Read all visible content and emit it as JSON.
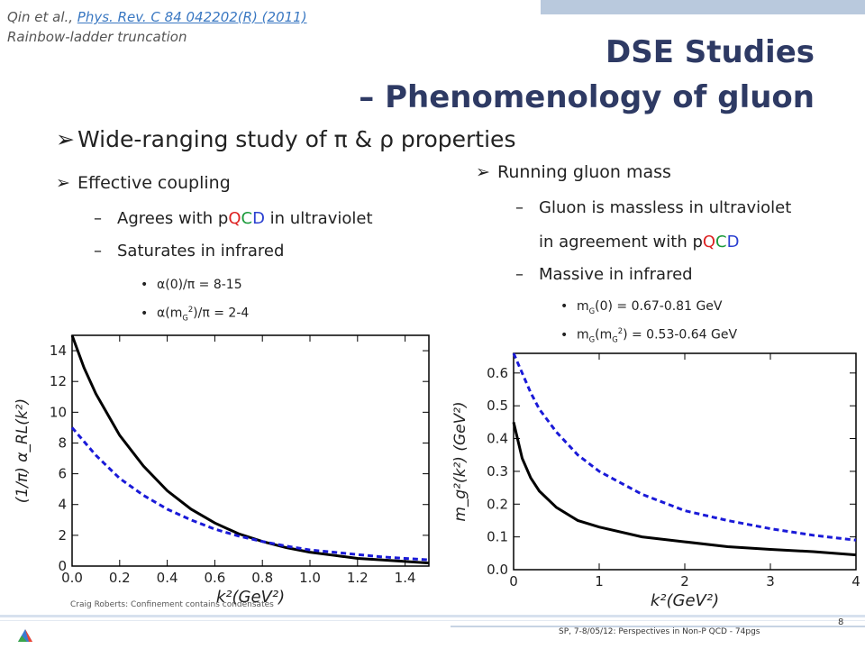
{
  "reference": {
    "author": "Qin",
    "etal": " et al., ",
    "link": "Phys. Rev. C 84 042202(R) (2011)",
    "subtitle": "Rainbow-ladder truncation"
  },
  "title": {
    "line1": "DSE Studies",
    "line2": "– Phenomenology of gluon"
  },
  "bullets": {
    "main": "Wide-ranging study of π & ρ properties",
    "coupling": "Effective coupling",
    "agrees_pre": "Agrees with p",
    "agrees_q": "Q",
    "agrees_c": "C",
    "agrees_d": "D",
    "agrees_post": " in ultraviolet",
    "saturates": "Saturates in infrared",
    "alpha0": "α(0)/π  = 8-15",
    "alphaM_pre": "α(m",
    "alphaM_sub": "G",
    "alphaM_sup": "2",
    "alphaM_post": ")/π  = 2-4",
    "running": "Running gluon mass",
    "massless": "Gluon is massless in ultraviolet",
    "agreement_pre": "in agreement with p",
    "agreement_q": "Q",
    "agreement_c": "C",
    "agreement_d": "D",
    "massive": "Massive in infrared",
    "mg0_pre": "m",
    "mg0_sub": "G",
    "mg0_post": "(0)  = 0.67-0.81 GeV",
    "mgm_pre": "m",
    "mgm_sub": "G",
    "mgm_mid": "(m",
    "mgm_sub2": "G",
    "mgm_sup": "2",
    "mgm_post": ")  = 0.53-0.64 GeV"
  },
  "footer": {
    "left": "Craig Roberts: Confinement contains condensates",
    "right": "SP, 7-8/05/12: Perspectives in Non-P QCD - 74pgs",
    "page": "8"
  },
  "colors": {
    "title": "#2e3a64",
    "solid": "#000000",
    "dashed": "#1a1ad8"
  },
  "chart_data": [
    {
      "type": "line",
      "xlabel": "k²(GeV²)",
      "ylabel": "(1/π) α_RL(k²)",
      "xlim": [
        0,
        1.5
      ],
      "ylim": [
        0,
        15
      ],
      "xticks": [
        "0.0",
        "0.2",
        "0.4",
        "0.6",
        "0.8",
        "1.0",
        "1.2",
        "1.4"
      ],
      "yticks": [
        "0",
        "2",
        "4",
        "6",
        "8",
        "10",
        "12",
        "14"
      ],
      "series": [
        {
          "style": "solid",
          "x": [
            0,
            0.05,
            0.1,
            0.2,
            0.3,
            0.4,
            0.5,
            0.6,
            0.7,
            0.8,
            0.9,
            1.0,
            1.1,
            1.2,
            1.3,
            1.4,
            1.5
          ],
          "y": [
            15,
            12.9,
            11.2,
            8.5,
            6.5,
            4.9,
            3.7,
            2.8,
            2.1,
            1.6,
            1.2,
            0.9,
            0.7,
            0.5,
            0.4,
            0.3,
            0.2
          ]
        },
        {
          "style": "dashed",
          "x": [
            0,
            0.05,
            0.1,
            0.2,
            0.3,
            0.4,
            0.5,
            0.6,
            0.7,
            0.8,
            0.9,
            1.0,
            1.1,
            1.2,
            1.3,
            1.4,
            1.5
          ],
          "y": [
            9,
            8.1,
            7.2,
            5.7,
            4.6,
            3.7,
            3.0,
            2.4,
            1.95,
            1.6,
            1.3,
            1.05,
            0.9,
            0.75,
            0.6,
            0.5,
            0.4
          ]
        }
      ]
    },
    {
      "type": "line",
      "xlabel": "k²(GeV²)",
      "ylabel": "m_g²(k²) (GeV²)",
      "xlim": [
        0,
        4
      ],
      "ylim": [
        0,
        0.66
      ],
      "xticks": [
        "0",
        "1",
        "2",
        "3",
        "4"
      ],
      "yticks": [
        "0.0",
        "0.1",
        "0.2",
        "0.3",
        "0.4",
        "0.5",
        "0.6"
      ],
      "series": [
        {
          "style": "solid",
          "x": [
            0,
            0.1,
            0.2,
            0.3,
            0.5,
            0.75,
            1.0,
            1.5,
            2.0,
            2.5,
            3.0,
            3.5,
            4.0
          ],
          "y": [
            0.45,
            0.34,
            0.28,
            0.24,
            0.19,
            0.15,
            0.13,
            0.1,
            0.085,
            0.07,
            0.062,
            0.055,
            0.045
          ]
        },
        {
          "style": "dashed",
          "x": [
            0,
            0.1,
            0.2,
            0.3,
            0.5,
            0.75,
            1.0,
            1.5,
            2.0,
            2.5,
            3.0,
            3.5,
            4.0
          ],
          "y": [
            0.66,
            0.6,
            0.54,
            0.49,
            0.42,
            0.35,
            0.3,
            0.23,
            0.18,
            0.15,
            0.125,
            0.105,
            0.09
          ]
        }
      ]
    }
  ]
}
